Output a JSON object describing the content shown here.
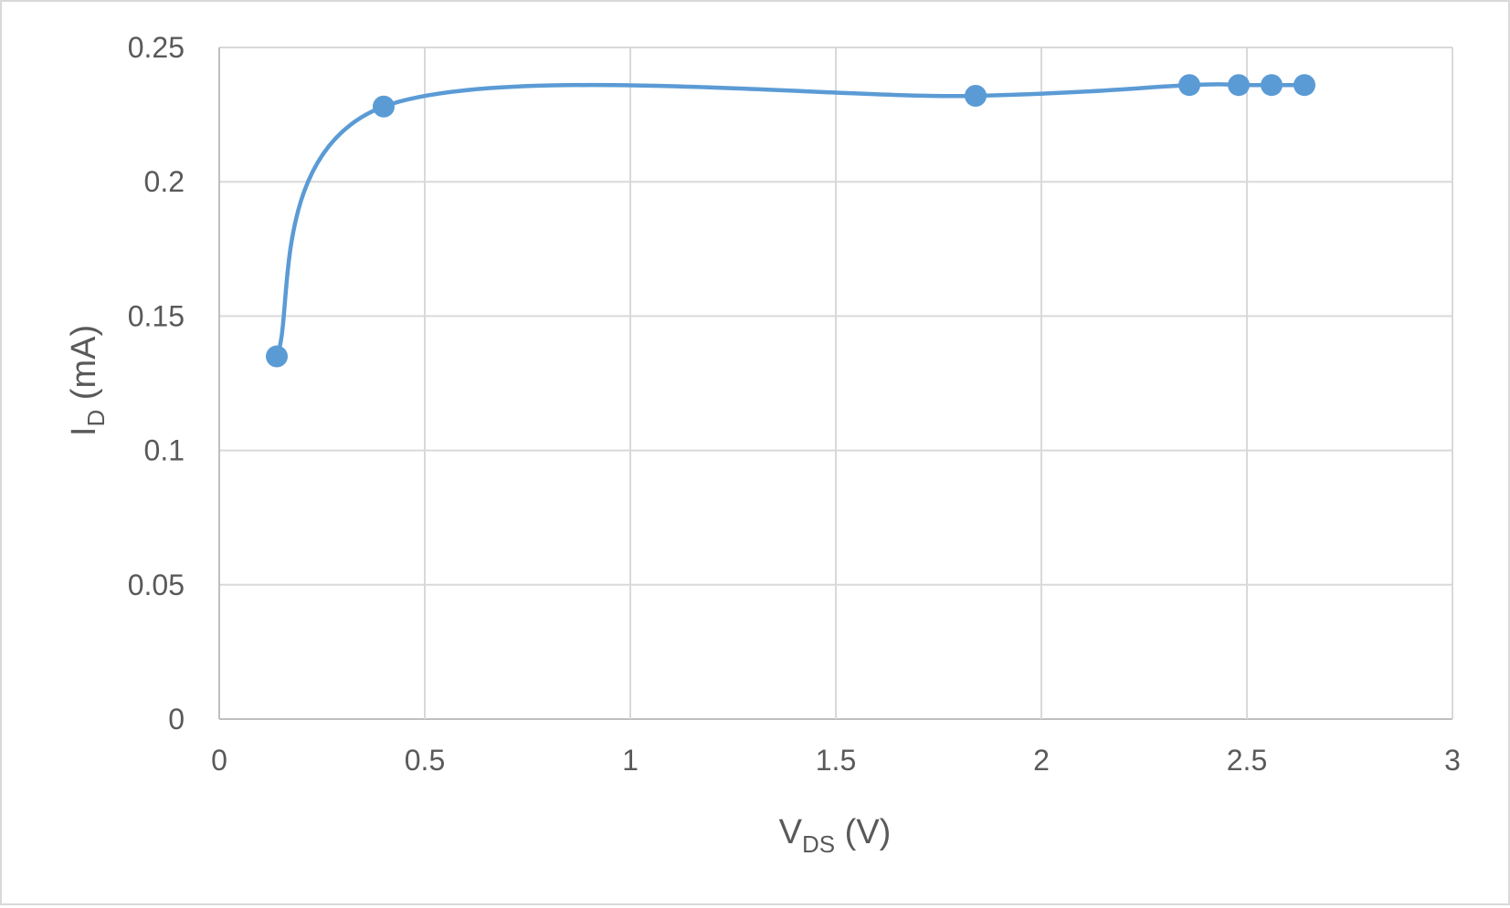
{
  "chart_data": {
    "type": "scatter",
    "style": "smooth-line-with-markers",
    "title": "",
    "xlabel": {
      "main": "V",
      "subscript": "DS",
      "suffix": " (V)"
    },
    "ylabel": {
      "main": "I",
      "subscript": "D",
      "suffix": " (mA)"
    },
    "xlim": [
      0,
      3
    ],
    "ylim": [
      0,
      0.25
    ],
    "x_ticks": [
      "0",
      "0.5",
      "1",
      "1.5",
      "2",
      "2.5",
      "3"
    ],
    "y_ticks": [
      "0",
      "0.05",
      "0.1",
      "0.15",
      "0.2",
      "0.25"
    ],
    "grid": true,
    "legend": "none",
    "series": [
      {
        "color": "#5b9bd5",
        "points": [
          {
            "x": 0.14,
            "y": 0.135
          },
          {
            "x": 0.4,
            "y": 0.228
          },
          {
            "x": 1.84,
            "y": 0.232
          },
          {
            "x": 2.36,
            "y": 0.236
          },
          {
            "x": 2.48,
            "y": 0.236
          },
          {
            "x": 2.56,
            "y": 0.236
          },
          {
            "x": 2.64,
            "y": 0.236
          }
        ]
      }
    ]
  }
}
